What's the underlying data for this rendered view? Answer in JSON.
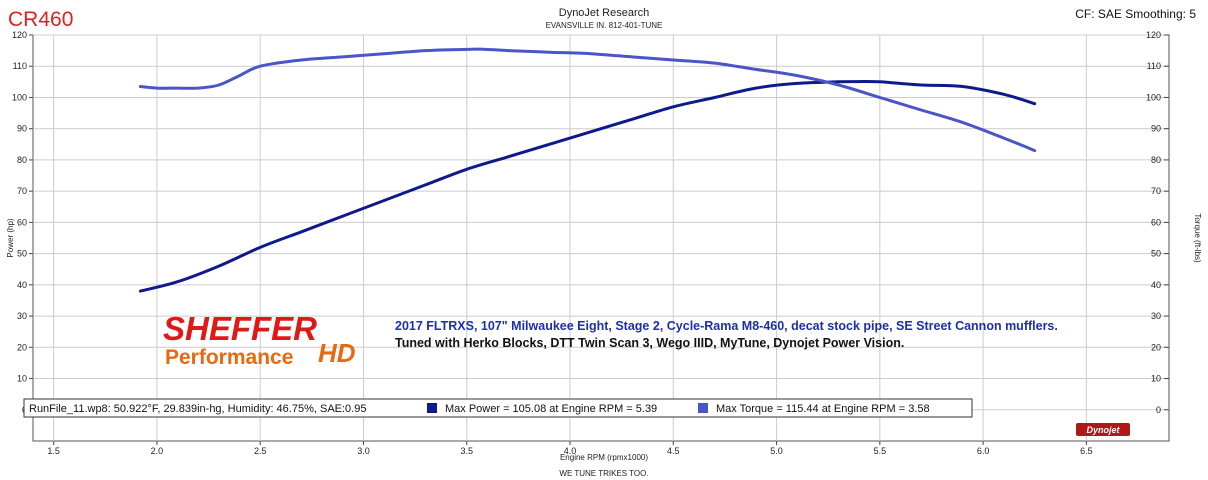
{
  "corner_title": "CR460",
  "header": {
    "title": "DynoJet Research",
    "subtitle": "EVANSVILLE IN. 812-401-TUNE",
    "cf_text": "CF: SAE Smoothing: 5"
  },
  "notes": {
    "line1": "2017 FLTRXS, 107\" Milwaukee Eight, Stage 2, Cycle-Rama M8-460, decat stock pipe, SE Street Cannon mufflers.",
    "line2": "Tuned with Herko Blocks, DTT Twin Scan 3, Wego IIID, MyTune, Dynojet Power Vision."
  },
  "logo": {
    "line1": "SHEFFER",
    "line2": "Performance",
    "mark": "HD"
  },
  "legend": {
    "runfile": "RunFile_11.wp8: 50.922°F, 29.839in-hg, Humidity: 46.75%, SAE:0.95",
    "power_label": "Max Power = 105.08 at Engine RPM = 5.39",
    "torque_label": "Max Torque = 115.44 at Engine RPM = 3.58"
  },
  "brand_badge": "Dynojet",
  "footer": "WE TUNE TRIKES TOO.",
  "colors": {
    "power": "#0e1a8c",
    "torque": "#4a55c8",
    "grid": "#cccccc",
    "title_red": "#e02020"
  },
  "chart_data": {
    "type": "line",
    "title": "DynoJet Research",
    "xlabel": "Engine RPM (rpmx1000)",
    "ylabel": "Power (hp)",
    "y2label": "Torque (ft-lbs)",
    "xlim": [
      1.4,
      6.9
    ],
    "ylim": [
      -10,
      120
    ],
    "y2lim": [
      -10,
      120
    ],
    "x_ticks": [
      1.5,
      2.0,
      2.5,
      3.0,
      3.5,
      4.0,
      4.5,
      5.0,
      5.5,
      6.0,
      6.5
    ],
    "x_tick_labels": [
      "1.5",
      "2.0",
      "2.5",
      "3.0",
      "3.5",
      "4.0",
      "4.5",
      "5.0",
      "5.5",
      "6.0",
      "6.5"
    ],
    "y_ticks": [
      0,
      10,
      20,
      30,
      40,
      50,
      60,
      70,
      80,
      90,
      100,
      110,
      120
    ],
    "y_tick_labels": [
      "0",
      "10",
      "20",
      "30",
      "40",
      "50",
      "60",
      "70",
      "80",
      "90",
      "100",
      "110",
      "120"
    ],
    "y2_ticks": [
      0,
      10,
      20,
      30,
      40,
      50,
      60,
      70,
      80,
      90,
      100,
      110,
      120
    ],
    "y2_tick_labels": [
      "0",
      "10",
      "20",
      "30",
      "40",
      "50",
      "60",
      "70",
      "80",
      "90",
      "100",
      "110",
      "120"
    ],
    "grid": true,
    "legend_placement": "bottom-left",
    "series": [
      {
        "name": "Max Power = 105.08 at Engine RPM = 5.39",
        "axis": "left",
        "x": [
          1.92,
          2.1,
          2.3,
          2.5,
          2.7,
          2.9,
          3.1,
          3.3,
          3.5,
          3.7,
          3.9,
          4.1,
          4.3,
          4.5,
          4.7,
          4.9,
          5.1,
          5.3,
          5.39,
          5.5,
          5.7,
          5.9,
          6.1,
          6.25
        ],
        "y": [
          38,
          41,
          46,
          52,
          57,
          62,
          67,
          72,
          77,
          81,
          85,
          89,
          93,
          97,
          100,
          103,
          104.5,
          105,
          105.08,
          105,
          104,
          103.5,
          101,
          98
        ]
      },
      {
        "name": "Max Torque = 115.44 at Engine RPM = 3.58",
        "axis": "right",
        "x": [
          1.92,
          2.0,
          2.1,
          2.2,
          2.3,
          2.4,
          2.5,
          2.7,
          2.9,
          3.1,
          3.3,
          3.5,
          3.58,
          3.7,
          3.9,
          4.1,
          4.3,
          4.5,
          4.7,
          4.9,
          5.1,
          5.3,
          5.5,
          5.7,
          5.9,
          6.1,
          6.25
        ],
        "y": [
          103.5,
          103,
          103,
          103,
          104,
          107,
          110,
          112,
          113,
          114,
          115,
          115.4,
          115.44,
          115,
          114.5,
          114,
          113,
          112,
          111,
          109,
          107,
          104,
          100,
          96,
          92,
          87,
          83
        ]
      }
    ]
  }
}
